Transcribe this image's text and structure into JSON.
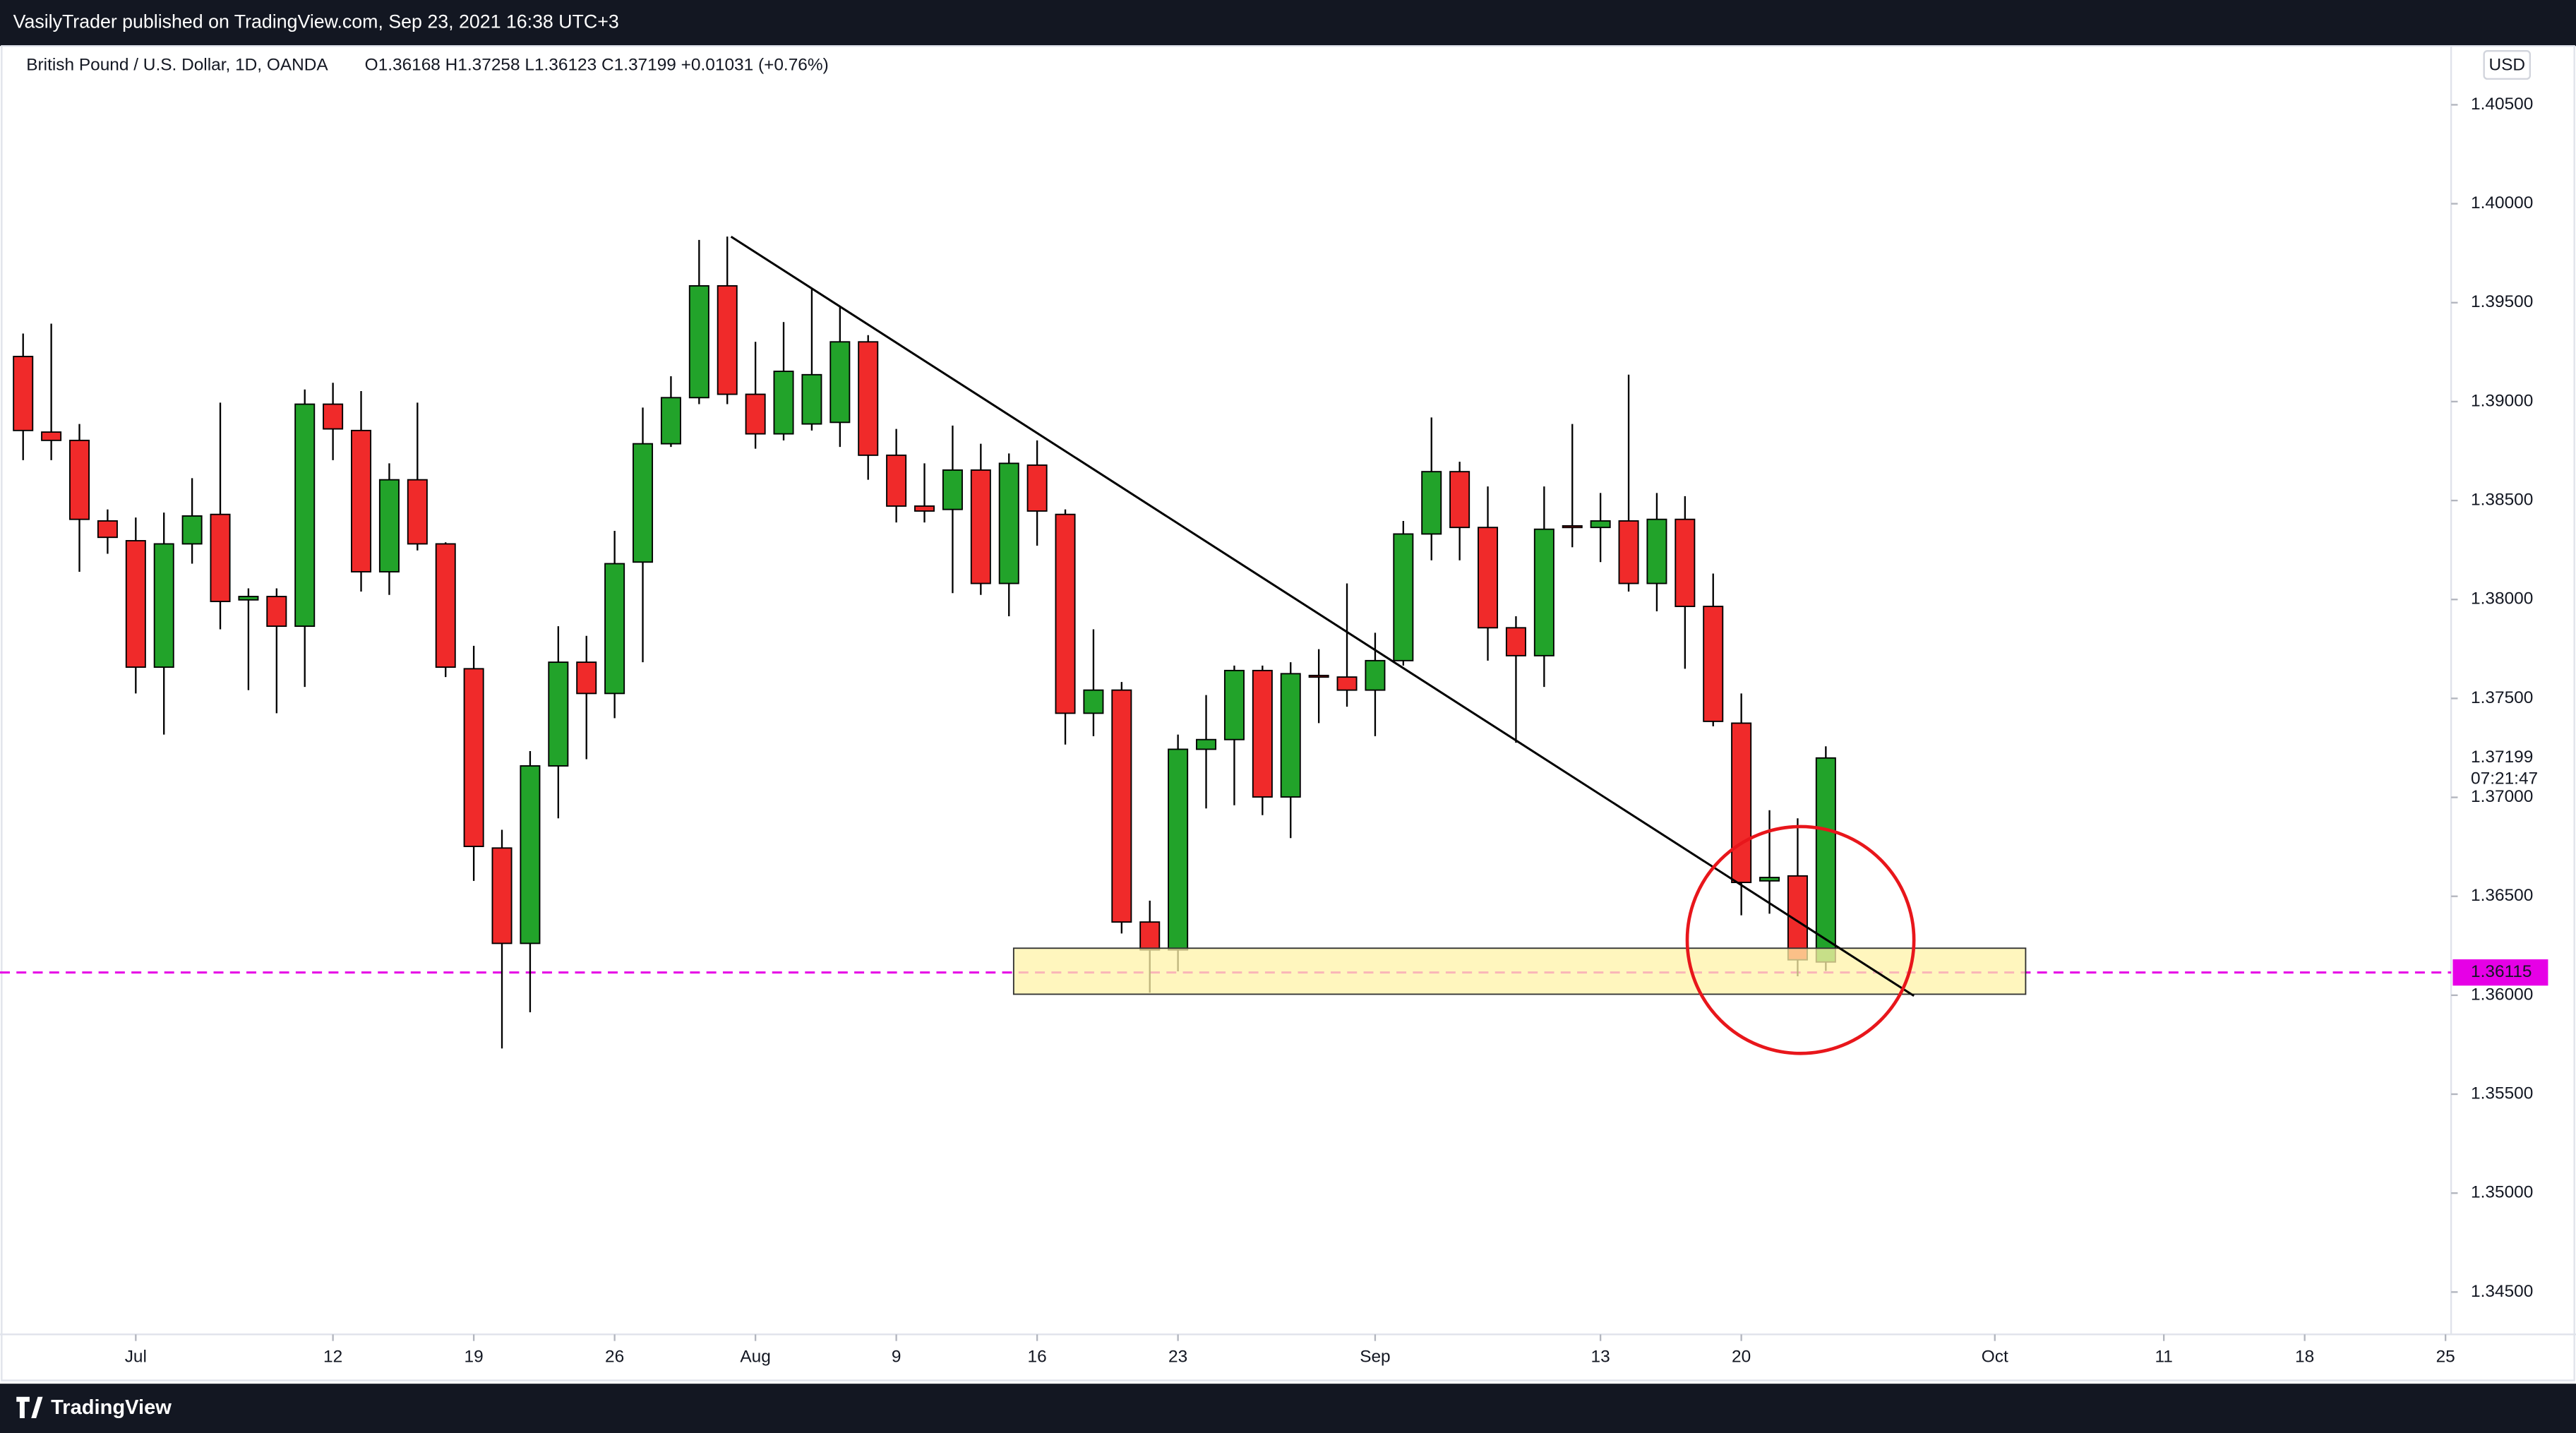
{
  "header": {
    "publisher": "VasilyTrader published on TradingView.com, Sep 23, 2021 16:38 UTC+3"
  },
  "footer": {
    "brand": "TradingView"
  },
  "chart_data": {
    "type": "candlestick",
    "symbol": "British Pound / U.S. Dollar, 1D, OANDA",
    "ohlc_legend": "O1.36168  H1.37258  L1.36123  C1.37199  +0.01031 (+0.76%)",
    "currency": "USD",
    "countdown": "07:21:47",
    "up_color": "#22a32a",
    "down_color": "#f02a2a",
    "grid": false,
    "open": [
      1.39228,
      1.38846,
      1.38804,
      1.38397,
      1.38297,
      1.37658,
      1.38281,
      1.3843,
      1.37998,
      1.38015,
      1.37865,
      1.38987,
      1.38854,
      1.3814,
      1.38605,
      1.38281,
      1.3765,
      1.36744,
      1.36262,
      1.37159,
      1.37683,
      1.37525,
      1.38189,
      1.38787,
      1.3902,
      1.39585,
      1.39037,
      1.38837,
      1.38887,
      1.38895,
      1.39302,
      1.38729,
      1.38472,
      1.38455,
      1.38654,
      1.38081,
      1.38679,
      1.3843,
      1.37425,
      1.37542,
      1.3637,
      1.36229,
      1.37243,
      1.37292,
      1.37641,
      1.37002,
      1.37616,
      1.37608,
      1.37542,
      1.37691,
      1.38331,
      1.38646,
      1.38364,
      1.37857,
      1.37716,
      1.38372,
      1.38364,
      1.38397,
      1.38081,
      1.38405,
      1.37965,
      1.37375,
      1.36578,
      1.36603,
      1.36168
    ],
    "high": [
      1.39344,
      1.39394,
      1.38887,
      1.38455,
      1.38414,
      1.38439,
      1.38613,
      1.38995,
      1.38056,
      1.38056,
      1.39061,
      1.39095,
      1.39053,
      1.38688,
      1.38995,
      1.38289,
      1.37766,
      1.36836,
      1.37234,
      1.37865,
      1.37816,
      1.38347,
      1.3897,
      1.39128,
      1.39817,
      1.39834,
      1.39302,
      1.39402,
      1.39568,
      1.39485,
      1.39336,
      1.38862,
      1.38688,
      1.38879,
      1.38787,
      1.38738,
      1.38804,
      1.38455,
      1.37849,
      1.37583,
      1.36478,
      1.37317,
      1.37517,
      1.37666,
      1.37666,
      1.37683,
      1.37749,
      1.38081,
      1.37832,
      1.38397,
      1.3892,
      1.38696,
      1.38571,
      1.37915,
      1.38571,
      1.38887,
      1.38538,
      1.39136,
      1.38538,
      1.38522,
      1.38131,
      1.37525,
      1.36935,
      1.36894,
      1.37258
    ],
    "low": [
      1.38704,
      1.38704,
      1.3814,
      1.38231,
      1.37525,
      1.37317,
      1.38181,
      1.37849,
      1.37542,
      1.37425,
      1.37558,
      1.38704,
      1.3804,
      1.38023,
      1.38248,
      1.37608,
      1.36578,
      1.35731,
      1.35914,
      1.36894,
      1.37193,
      1.374,
      1.37683,
      1.38771,
      1.38987,
      1.38987,
      1.38762,
      1.38804,
      1.38854,
      1.38771,
      1.38605,
      1.38389,
      1.38389,
      1.38032,
      1.38023,
      1.37915,
      1.38272,
      1.37267,
      1.37309,
      1.36312,
      1.36013,
      1.36121,
      1.36944,
      1.3696,
      1.3691,
      1.36794,
      1.37375,
      1.37458,
      1.37309,
      1.37666,
      1.38198,
      1.38198,
      1.37691,
      1.37276,
      1.37558,
      1.38264,
      1.38189,
      1.3804,
      1.3794,
      1.3765,
      1.37359,
      1.36404,
      1.36412,
      1.36096,
      1.36123
    ],
    "close": [
      1.38854,
      1.38804,
      1.38405,
      1.38314,
      1.37658,
      1.38281,
      1.38422,
      1.3799,
      1.38015,
      1.37865,
      1.38987,
      1.38862,
      1.3814,
      1.38605,
      1.38281,
      1.37658,
      1.36752,
      1.36262,
      1.37159,
      1.37683,
      1.37525,
      1.38181,
      1.38787,
      1.3902,
      1.39585,
      1.39037,
      1.38837,
      1.39153,
      1.39136,
      1.39302,
      1.38729,
      1.38472,
      1.38447,
      1.38654,
      1.38081,
      1.38688,
      1.38447,
      1.37425,
      1.37542,
      1.3637,
      1.36229,
      1.37243,
      1.37292,
      1.37641,
      1.37002,
      1.37625,
      1.37608,
      1.37542,
      1.37691,
      1.38331,
      1.38646,
      1.38364,
      1.37857,
      1.37716,
      1.38355,
      1.38364,
      1.38397,
      1.38081,
      1.38405,
      1.37965,
      1.37384,
      1.3657,
      1.36595,
      1.36179,
      1.37199
    ],
    "price_line": 1.36115,
    "price_line_color": "#e600e6",
    "xlim": [
      -0.82,
      86.2
    ],
    "xticks": [
      {
        "value": 4,
        "label": "Jul"
      },
      {
        "value": 11,
        "label": "12"
      },
      {
        "value": 16,
        "label": "19"
      },
      {
        "value": 21,
        "label": "26"
      },
      {
        "value": 26,
        "label": "Aug"
      },
      {
        "value": 31,
        "label": "9"
      },
      {
        "value": 36,
        "label": "16"
      },
      {
        "value": 41,
        "label": "23"
      },
      {
        "value": 48,
        "label": "Sep"
      },
      {
        "value": 56,
        "label": "13"
      },
      {
        "value": 61,
        "label": "20"
      },
      {
        "value": 70,
        "label": "Oct"
      },
      {
        "value": 76,
        "label": "11"
      },
      {
        "value": 81,
        "label": "18"
      },
      {
        "value": 86,
        "label": "25"
      }
    ],
    "ylim": [
      1.34286,
      1.40797
    ],
    "yticks": [
      {
        "value": 1.345,
        "label": "1.34500"
      },
      {
        "value": 1.35,
        "label": "1.35000"
      },
      {
        "value": 1.355,
        "label": "1.35500"
      },
      {
        "value": 1.36,
        "label": "1.36000"
      },
      {
        "value": 1.365,
        "label": "1.36500"
      },
      {
        "value": 1.37,
        "label": "1.37000"
      },
      {
        "value": 1.375,
        "label": "1.37500"
      },
      {
        "value": 1.38,
        "label": "1.38000"
      },
      {
        "value": 1.385,
        "label": "1.38500"
      },
      {
        "value": 1.39,
        "label": "1.39000"
      },
      {
        "value": 1.395,
        "label": "1.39500"
      },
      {
        "value": 1.4,
        "label": "1.40000"
      },
      {
        "value": 1.405,
        "label": "1.40500"
      }
    ]
  }
}
